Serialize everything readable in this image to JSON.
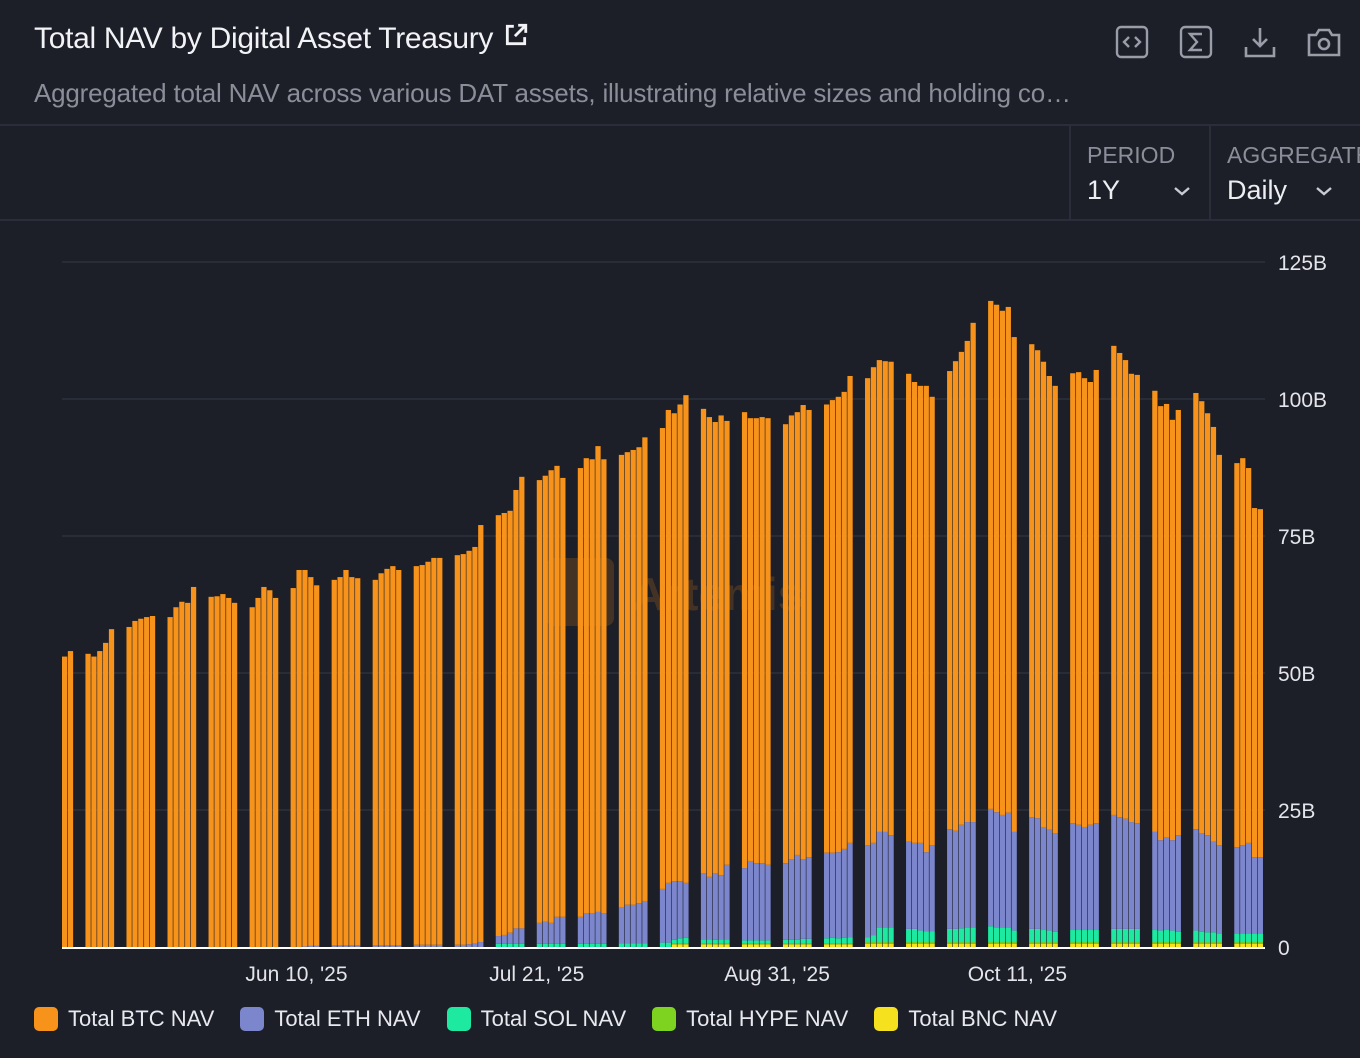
{
  "header": {
    "title": "Total NAV by Digital Asset Treasury",
    "subtitle": "Aggregated total NAV across various DAT assets, illustrating relative sizes and holding co…",
    "icons": [
      "external-link-icon",
      "embed-code-icon",
      "sigma-icon",
      "download-icon",
      "camera-icon"
    ]
  },
  "controls": {
    "period": {
      "label": "PERIOD",
      "value": "1Y"
    },
    "aggregate": {
      "label": "AGGREGATE",
      "value": "Daily"
    }
  },
  "watermark": "Artemis",
  "chart_data": {
    "type": "bar",
    "stacked": true,
    "title": "",
    "xlabel": "",
    "ylabel": "",
    "ylim": [
      0,
      125
    ],
    "y_unit": "B",
    "y_ticks": [
      "0",
      "25B",
      "50B",
      "75B",
      "100B",
      "125B"
    ],
    "y_tick_values": [
      0,
      25,
      50,
      75,
      100,
      125
    ],
    "x_ticks": [
      {
        "date": "2025-06-10",
        "label": "Jun 10, '25"
      },
      {
        "date": "2025-07-21",
        "label": "Jul 21, '25"
      },
      {
        "date": "2025-08-31",
        "label": "Aug 31, '25"
      },
      {
        "date": "2025-10-11",
        "label": "Oct 11, '25"
      }
    ],
    "grid": true,
    "legend_position": "bottom-left",
    "x": [
      "2025-05-01",
      "2025-05-02",
      "2025-05-05",
      "2025-05-06",
      "2025-05-07",
      "2025-05-08",
      "2025-05-09",
      "2025-05-12",
      "2025-05-13",
      "2025-05-14",
      "2025-05-15",
      "2025-05-16",
      "2025-05-19",
      "2025-05-20",
      "2025-05-21",
      "2025-05-22",
      "2025-05-23",
      "2025-05-26",
      "2025-05-27",
      "2025-05-28",
      "2025-05-29",
      "2025-05-30",
      "2025-06-02",
      "2025-06-03",
      "2025-06-04",
      "2025-06-05",
      "2025-06-06",
      "2025-06-09",
      "2025-06-10",
      "2025-06-11",
      "2025-06-12",
      "2025-06-13",
      "2025-06-16",
      "2025-06-17",
      "2025-06-18",
      "2025-06-19",
      "2025-06-20",
      "2025-06-23",
      "2025-06-24",
      "2025-06-25",
      "2025-06-26",
      "2025-06-27",
      "2025-06-30",
      "2025-07-01",
      "2025-07-02",
      "2025-07-03",
      "2025-07-04",
      "2025-07-07",
      "2025-07-08",
      "2025-07-09",
      "2025-07-10",
      "2025-07-11",
      "2025-07-14",
      "2025-07-15",
      "2025-07-16",
      "2025-07-17",
      "2025-07-18",
      "2025-07-21",
      "2025-07-22",
      "2025-07-23",
      "2025-07-24",
      "2025-07-25",
      "2025-07-28",
      "2025-07-29",
      "2025-07-30",
      "2025-07-31",
      "2025-08-01",
      "2025-08-04",
      "2025-08-05",
      "2025-08-06",
      "2025-08-07",
      "2025-08-08",
      "2025-08-11",
      "2025-08-12",
      "2025-08-13",
      "2025-08-14",
      "2025-08-15",
      "2025-08-18",
      "2025-08-19",
      "2025-08-20",
      "2025-08-21",
      "2025-08-22",
      "2025-08-25",
      "2025-08-26",
      "2025-08-27",
      "2025-08-28",
      "2025-08-29",
      "2025-09-01",
      "2025-09-02",
      "2025-09-03",
      "2025-09-04",
      "2025-09-05",
      "2025-09-08",
      "2025-09-09",
      "2025-09-10",
      "2025-09-11",
      "2025-09-12",
      "2025-09-15",
      "2025-09-16",
      "2025-09-17",
      "2025-09-18",
      "2025-09-19",
      "2025-09-22",
      "2025-09-23",
      "2025-09-24",
      "2025-09-25",
      "2025-09-26",
      "2025-09-29",
      "2025-09-30",
      "2025-10-01",
      "2025-10-02",
      "2025-10-03",
      "2025-10-06",
      "2025-10-07",
      "2025-10-08",
      "2025-10-09",
      "2025-10-10",
      "2025-10-13",
      "2025-10-14",
      "2025-10-15",
      "2025-10-16",
      "2025-10-17",
      "2025-10-20",
      "2025-10-21",
      "2025-10-22",
      "2025-10-23",
      "2025-10-24",
      "2025-10-27",
      "2025-10-28",
      "2025-10-29",
      "2025-10-30",
      "2025-10-31",
      "2025-11-03",
      "2025-11-04",
      "2025-11-05",
      "2025-11-06",
      "2025-11-07",
      "2025-11-10",
      "2025-11-11",
      "2025-11-12",
      "2025-11-13",
      "2025-11-14",
      "2025-11-17",
      "2025-11-18",
      "2025-11-19",
      "2025-11-20",
      "2025-11-21"
    ],
    "series": [
      {
        "name": "Total BNC NAV",
        "color": "#f5e11d",
        "values": [
          0,
          0,
          0,
          0,
          0,
          0,
          0,
          0,
          0,
          0,
          0,
          0,
          0,
          0,
          0,
          0,
          0,
          0,
          0,
          0,
          0,
          0,
          0,
          0,
          0,
          0,
          0,
          0,
          0,
          0,
          0,
          0,
          0,
          0,
          0,
          0,
          0,
          0,
          0,
          0,
          0,
          0,
          0,
          0,
          0,
          0,
          0,
          0,
          0,
          0,
          0,
          0,
          0,
          0,
          0,
          0,
          0,
          0,
          0,
          0,
          0,
          0,
          0,
          0,
          0,
          0,
          0,
          0,
          0,
          0,
          0,
          0,
          0,
          0,
          0.5,
          0.5,
          0.5,
          0.5,
          0.5,
          0.5,
          0.5,
          0.5,
          0.5,
          0.5,
          0.5,
          0.5,
          0.5,
          0.5,
          0.5,
          0.5,
          0.5,
          0.5,
          0.5,
          0.5,
          0.5,
          0.5,
          0.5,
          0.6,
          0.6,
          0.6,
          0.6,
          0.6,
          0.6,
          0.6,
          0.6,
          0.6,
          0.6,
          0.6,
          0.6,
          0.6,
          0.6,
          0.6,
          0.6,
          0.6,
          0.6,
          0.6,
          0.6,
          0.6,
          0.6,
          0.6,
          0.6,
          0.6,
          0.6,
          0.6,
          0.6,
          0.6,
          0.6,
          0.6,
          0.6,
          0.6,
          0.6,
          0.6,
          0.6,
          0.6,
          0.6,
          0.6,
          0.6,
          0.6,
          0.6,
          0.6,
          0.6,
          0.6,
          0.6,
          0.6,
          0.6,
          0.6,
          0.6
        ]
      },
      {
        "name": "Total HYPE NAV",
        "color": "#7ed321",
        "values": [
          0,
          0,
          0,
          0,
          0,
          0,
          0,
          0,
          0,
          0,
          0,
          0,
          0,
          0,
          0,
          0,
          0,
          0,
          0,
          0,
          0,
          0,
          0,
          0,
          0,
          0,
          0,
          0,
          0,
          0,
          0,
          0,
          0,
          0,
          0,
          0,
          0,
          0,
          0,
          0,
          0,
          0,
          0,
          0,
          0,
          0,
          0,
          0,
          0,
          0,
          0,
          0,
          0,
          0,
          0,
          0,
          0,
          0,
          0,
          0,
          0,
          0,
          0,
          0,
          0,
          0,
          0,
          0,
          0,
          0,
          0,
          0,
          0,
          0,
          0.2,
          0.2,
          0.2,
          0.2,
          0.2,
          0.2,
          0.2,
          0.2,
          0.2,
          0.2,
          0.2,
          0.2,
          0.2,
          0.2,
          0.2,
          0.2,
          0.2,
          0.2,
          0.2,
          0.2,
          0.2,
          0.2,
          0.2,
          0.3,
          0.3,
          0.3,
          0.3,
          0.3,
          0.3,
          0.3,
          0.3,
          0.3,
          0.3,
          0.3,
          0.3,
          0.3,
          0.3,
          0.3,
          0.3,
          0.3,
          0.3,
          0.3,
          0.3,
          0.3,
          0.3,
          0.3,
          0.3,
          0.3,
          0.3,
          0.3,
          0.3,
          0.3,
          0.3,
          0.3,
          0.3,
          0.3,
          0.3,
          0.3,
          0.3,
          0.3,
          0.3,
          0.3,
          0.3,
          0.3,
          0.3,
          0.3,
          0.3,
          0.3,
          0.3,
          0.3,
          0.3,
          0.3,
          0.3
        ]
      },
      {
        "name": "Total SOL NAV",
        "color": "#1de9a0",
        "values": [
          0,
          0,
          0,
          0,
          0,
          0,
          0,
          0,
          0,
          0,
          0,
          0,
          0,
          0,
          0,
          0,
          0,
          0,
          0,
          0,
          0,
          0,
          0,
          0,
          0,
          0,
          0,
          0,
          0,
          0,
          0,
          0,
          0,
          0,
          0,
          0,
          0,
          0,
          0,
          0,
          0,
          0,
          0,
          0,
          0,
          0,
          0,
          0,
          0,
          0,
          0,
          0,
          0.6,
          0.6,
          0.6,
          0.6,
          0.6,
          0.6,
          0.6,
          0.6,
          0.6,
          0.6,
          0.6,
          0.6,
          0.6,
          0.6,
          0.6,
          0.7,
          0.7,
          0.7,
          0.7,
          0.7,
          0.8,
          0.8,
          0.6,
          0.9,
          1.0,
          0.7,
          0.7,
          0.6,
          0.7,
          0.7,
          0.5,
          0.5,
          0.5,
          0.5,
          0.5,
          0.6,
          0.6,
          0.6,
          0.8,
          0.8,
          0.9,
          1.0,
          0.9,
          1.0,
          1.1,
          0.9,
          1.2,
          2.7,
          2.7,
          2.7,
          2.4,
          2.4,
          2.1,
          2.0,
          2.0,
          2.4,
          2.4,
          2.5,
          2.7,
          2.7,
          2.9,
          2.7,
          2.7,
          2.7,
          2.1,
          2.4,
          2.4,
          2.2,
          2.1,
          1.9,
          2.2,
          2.2,
          2.2,
          2.2,
          2.2,
          2.4,
          2.4,
          2.4,
          2.4,
          2.4,
          2.2,
          2.1,
          2.2,
          2.1,
          1.9,
          2.1,
          1.9,
          1.8,
          1.8,
          1.6,
          1.6,
          1.6,
          1.6,
          1.6,
          1.6
        ]
      },
      {
        "name": "Total ETH NAV",
        "color": "#7b86cc",
        "values": [
          0,
          0,
          0,
          0,
          0,
          0,
          0,
          0,
          0,
          0,
          0,
          0,
          0,
          0,
          0,
          0,
          0,
          0,
          0,
          0,
          0,
          0,
          0,
          0,
          0,
          0,
          0,
          0,
          0,
          0.1,
          0.2,
          0.2,
          0.3,
          0.3,
          0.3,
          0.3,
          0.3,
          0.3,
          0.3,
          0.3,
          0.3,
          0.3,
          0.4,
          0.4,
          0.4,
          0.4,
          0.4,
          0.4,
          0.4,
          0.5,
          0.6,
          0.9,
          1.4,
          1.6,
          2.0,
          2.8,
          2.8,
          3.8,
          4.0,
          3.8,
          4.9,
          4.9,
          4.9,
          5.6,
          5.6,
          5.8,
          5.6,
          6.6,
          7.0,
          7.0,
          7.3,
          7.7,
          9.8,
          10.9,
          10.7,
          10.4,
          10.0,
          12.1,
          11.4,
          12.2,
          11.7,
          13.6,
          13.2,
          14.5,
          14.1,
          14.1,
          13.8,
          14.0,
          14.7,
          15.5,
          14.5,
          14.9,
          15.6,
          15.5,
          15.7,
          16.2,
          17.2,
          16.8,
          16.9,
          17.4,
          17.4,
          16.8,
          15.9,
          15.7,
          16.0,
          14.4,
          15.7,
          18.2,
          17.9,
          18.9,
          19.2,
          19.2,
          21.4,
          21.0,
          20.5,
          20.9,
          18.0,
          20.4,
          20.2,
          18.8,
          18.4,
          18.0,
          19.5,
          19.2,
          18.8,
          19.2,
          19.5,
          20.8,
          20.4,
          20.1,
          19.5,
          19.3,
          17.9,
          16.5,
          16.9,
          16.5,
          17.6,
          18.5,
          18.0,
          17.7,
          16.5,
          16.1,
          15.7,
          16.1,
          16.5,
          13.9,
          13.9
        ]
      },
      {
        "name": "Total BTC NAV",
        "color": "#f7931a",
        "values": [
          53.0,
          54.0,
          53.5,
          53.0,
          54.0,
          55.5,
          58.0,
          58.4,
          59.5,
          59.9,
          60.2,
          60.4,
          60.2,
          62.0,
          63.0,
          62.8,
          65.7,
          63.9,
          64.0,
          64.4,
          63.7,
          62.8,
          62.0,
          63.7,
          65.7,
          65.1,
          63.7,
          65.5,
          68.8,
          68.7,
          67.3,
          65.8,
          66.7,
          67.2,
          68.5,
          67.2,
          67.0,
          66.7,
          67.9,
          68.7,
          69.2,
          68.5,
          69.1,
          69.3,
          69.9,
          70.6,
          70.6,
          71.1,
          71.3,
          71.8,
          72.4,
          76.1,
          76.8,
          77.0,
          77.0,
          80.0,
          82.4,
          80.8,
          81.4,
          82.6,
          82.3,
          80.1,
          81.9,
          83.0,
          82.8,
          85.0,
          82.8,
          82.5,
          82.6,
          83.0,
          83.2,
          84.6,
          84.1,
          86.3,
          85.4,
          87.0,
          89.0,
          84.7,
          83.9,
          82.3,
          83.9,
          81.0,
          83.2,
          80.8,
          81.2,
          81.4,
          81.5,
          80.1,
          81.0,
          80.8,
          82.9,
          81.6,
          81.8,
          82.6,
          83.1,
          83.4,
          85.2,
          85.2,
          86.8,
          86.1,
          85.9,
          86.4,
          85.4,
          84.1,
          83.4,
          85.1,
          81.8,
          83.6,
          85.7,
          86.3,
          87.8,
          91.1,
          92.7,
          92.6,
          92.0,
          92.3,
          90.3,
          86.3,
          85.4,
          84.9,
          82.8,
          81.6,
          82.1,
          82.6,
          81.9,
          80.8,
          82.7,
          85.6,
          84.7,
          83.7,
          81.8,
          81.8,
          80.5,
          79.2,
          79.1,
          76.7,
          77.6,
          79.6,
          78.8,
          77.0,
          75.7,
          71.2,
          70.1,
          70.6,
          68.4,
          63.7,
          63.5
        ]
      }
    ],
    "legend": [
      {
        "name": "Total BTC NAV",
        "color": "#f7931a"
      },
      {
        "name": "Total ETH NAV",
        "color": "#7b86cc"
      },
      {
        "name": "Total SOL NAV",
        "color": "#1de9a0"
      },
      {
        "name": "Total HYPE NAV",
        "color": "#7ed321"
      },
      {
        "name": "Total BNC NAV",
        "color": "#f5e11d"
      }
    ]
  }
}
